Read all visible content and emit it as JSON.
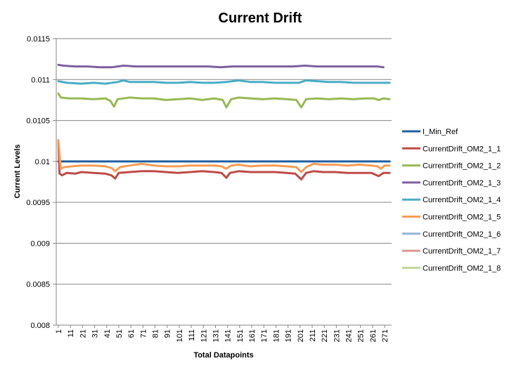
{
  "chart_data": {
    "type": "line",
    "title": "Current Drift",
    "xlabel": "Total Datapoints",
    "ylabel": "Current Levels",
    "xlim": [
      1,
      275
    ],
    "ylim": [
      0.008,
      0.0115
    ],
    "y_ticks": [
      "0.008",
      "0.0085",
      "0.009",
      "0.0095",
      "0.01",
      "0.0105",
      "0.011",
      "0.0115"
    ],
    "x_ticks": [
      "1",
      "11",
      "21",
      "31",
      "41",
      "51",
      "61",
      "71",
      "81",
      "91",
      "101",
      "111",
      "121",
      "131",
      "141",
      "151",
      "161",
      "171",
      "181",
      "191",
      "201",
      "211",
      "221",
      "231",
      "241",
      "251",
      "261",
      "271"
    ],
    "grid": true,
    "legend_position": "right",
    "series": [
      {
        "name": "I_Min_Ref",
        "color": "#1f5f9f",
        "points": [
          [
            1,
            0.01
          ],
          [
            275,
            0.01
          ]
        ]
      },
      {
        "name": "CurrentDrift_OM2_1_1",
        "color": "#be4b48",
        "points": [
          [
            1,
            0.01025
          ],
          [
            2,
            0.00985
          ],
          [
            4,
            0.00983
          ],
          [
            8,
            0.00986
          ],
          [
            15,
            0.00985
          ],
          [
            20,
            0.00987
          ],
          [
            30,
            0.00986
          ],
          [
            40,
            0.00985
          ],
          [
            45,
            0.00983
          ],
          [
            48,
            0.00979
          ],
          [
            51,
            0.00986
          ],
          [
            60,
            0.00987
          ],
          [
            70,
            0.00988
          ],
          [
            80,
            0.00988
          ],
          [
            90,
            0.00987
          ],
          [
            100,
            0.00986
          ],
          [
            110,
            0.00987
          ],
          [
            120,
            0.00988
          ],
          [
            130,
            0.00987
          ],
          [
            136,
            0.00986
          ],
          [
            140,
            0.0098
          ],
          [
            143,
            0.00986
          ],
          [
            150,
            0.00988
          ],
          [
            160,
            0.00987
          ],
          [
            170,
            0.00987
          ],
          [
            180,
            0.00987
          ],
          [
            190,
            0.00986
          ],
          [
            197,
            0.00985
          ],
          [
            202,
            0.00978
          ],
          [
            206,
            0.00986
          ],
          [
            212,
            0.00988
          ],
          [
            220,
            0.00987
          ],
          [
            230,
            0.00987
          ],
          [
            240,
            0.00986
          ],
          [
            250,
            0.00986
          ],
          [
            260,
            0.00986
          ],
          [
            266,
            0.00982
          ],
          [
            270,
            0.00986
          ],
          [
            275,
            0.00986
          ]
        ]
      },
      {
        "name": "CurrentDrift_OM2_1_2",
        "color": "#98b954",
        "points": [
          [
            1,
            0.01083
          ],
          [
            3,
            0.01078
          ],
          [
            10,
            0.01077
          ],
          [
            20,
            0.01077
          ],
          [
            30,
            0.01076
          ],
          [
            40,
            0.01077
          ],
          [
            44,
            0.01074
          ],
          [
            47,
            0.01067
          ],
          [
            50,
            0.01076
          ],
          [
            60,
            0.01078
          ],
          [
            70,
            0.01077
          ],
          [
            80,
            0.01077
          ],
          [
            90,
            0.01075
          ],
          [
            100,
            0.01076
          ],
          [
            110,
            0.01077
          ],
          [
            120,
            0.01075
          ],
          [
            130,
            0.01077
          ],
          [
            137,
            0.01075
          ],
          [
            140,
            0.01066
          ],
          [
            144,
            0.01076
          ],
          [
            150,
            0.01078
          ],
          [
            160,
            0.01077
          ],
          [
            170,
            0.01076
          ],
          [
            180,
            0.01077
          ],
          [
            190,
            0.01076
          ],
          [
            198,
            0.01075
          ],
          [
            202,
            0.01066
          ],
          [
            206,
            0.01076
          ],
          [
            215,
            0.01077
          ],
          [
            225,
            0.01076
          ],
          [
            235,
            0.01077
          ],
          [
            245,
            0.01076
          ],
          [
            255,
            0.01077
          ],
          [
            262,
            0.01077
          ],
          [
            266,
            0.01075
          ],
          [
            270,
            0.01077
          ],
          [
            275,
            0.01076
          ]
        ]
      },
      {
        "name": "CurrentDrift_OM2_1_3",
        "color": "#7d60a0",
        "points": [
          [
            1,
            0.01118
          ],
          [
            5,
            0.01117
          ],
          [
            15,
            0.01116
          ],
          [
            25,
            0.01116
          ],
          [
            35,
            0.01115
          ],
          [
            45,
            0.01115
          ],
          [
            55,
            0.01117
          ],
          [
            65,
            0.01116
          ],
          [
            75,
            0.01116
          ],
          [
            85,
            0.01116
          ],
          [
            95,
            0.01116
          ],
          [
            105,
            0.01116
          ],
          [
            115,
            0.01116
          ],
          [
            125,
            0.01116
          ],
          [
            135,
            0.01115
          ],
          [
            145,
            0.01116
          ],
          [
            155,
            0.01116
          ],
          [
            165,
            0.01116
          ],
          [
            175,
            0.01116
          ],
          [
            185,
            0.01116
          ],
          [
            195,
            0.01116
          ],
          [
            205,
            0.01117
          ],
          [
            215,
            0.01116
          ],
          [
            225,
            0.01116
          ],
          [
            235,
            0.01116
          ],
          [
            245,
            0.01116
          ],
          [
            255,
            0.01116
          ],
          [
            265,
            0.01116
          ],
          [
            270,
            0.01115
          ]
        ]
      },
      {
        "name": "CurrentDrift_OM2_1_4",
        "color": "#4aacc5",
        "points": [
          [
            1,
            0.01098
          ],
          [
            8,
            0.01096
          ],
          [
            20,
            0.01095
          ],
          [
            30,
            0.01096
          ],
          [
            40,
            0.01095
          ],
          [
            50,
            0.01097
          ],
          [
            55,
            0.01099
          ],
          [
            60,
            0.01097
          ],
          [
            70,
            0.01097
          ],
          [
            80,
            0.01097
          ],
          [
            90,
            0.01096
          ],
          [
            100,
            0.01096
          ],
          [
            110,
            0.01097
          ],
          [
            120,
            0.01096
          ],
          [
            130,
            0.01096
          ],
          [
            140,
            0.01097
          ],
          [
            150,
            0.01099
          ],
          [
            160,
            0.01097
          ],
          [
            170,
            0.01097
          ],
          [
            180,
            0.01096
          ],
          [
            190,
            0.01096
          ],
          [
            200,
            0.01096
          ],
          [
            206,
            0.01099
          ],
          [
            215,
            0.01098
          ],
          [
            225,
            0.01097
          ],
          [
            235,
            0.01097
          ],
          [
            245,
            0.01096
          ],
          [
            255,
            0.01096
          ],
          [
            265,
            0.01096
          ],
          [
            275,
            0.01096
          ]
        ]
      },
      {
        "name": "CurrentDrift_OM2_1_5",
        "color": "#f59d56",
        "points": [
          [
            1,
            0.01026
          ],
          [
            3,
            0.00991
          ],
          [
            6,
            0.00993
          ],
          [
            12,
            0.00994
          ],
          [
            20,
            0.00995
          ],
          [
            30,
            0.00995
          ],
          [
            40,
            0.00994
          ],
          [
            45,
            0.00992
          ],
          [
            48,
            0.00988
          ],
          [
            52,
            0.00993
          ],
          [
            60,
            0.00995
          ],
          [
            70,
            0.00997
          ],
          [
            80,
            0.00995
          ],
          [
            90,
            0.00994
          ],
          [
            100,
            0.00994
          ],
          [
            110,
            0.00995
          ],
          [
            120,
            0.00995
          ],
          [
            130,
            0.00995
          ],
          [
            136,
            0.00994
          ],
          [
            140,
            0.00991
          ],
          [
            144,
            0.00995
          ],
          [
            150,
            0.00996
          ],
          [
            160,
            0.00994
          ],
          [
            170,
            0.00995
          ],
          [
            180,
            0.00995
          ],
          [
            190,
            0.00994
          ],
          [
            198,
            0.00993
          ],
          [
            202,
            0.00987
          ],
          [
            206,
            0.00993
          ],
          [
            212,
            0.00997
          ],
          [
            220,
            0.00996
          ],
          [
            230,
            0.00996
          ],
          [
            240,
            0.00995
          ],
          [
            250,
            0.00996
          ],
          [
            260,
            0.00995
          ],
          [
            265,
            0.00994
          ],
          [
            268,
            0.00991
          ],
          [
            271,
            0.00995
          ],
          [
            275,
            0.00995
          ]
        ]
      },
      {
        "name": "CurrentDrift_OM2_1_6",
        "color": "#95b3d7",
        "points": []
      },
      {
        "name": "CurrentDrift_OM2_1_7",
        "color": "#d99694",
        "points": []
      },
      {
        "name": "CurrentDrift_OM2_1_8",
        "color": "#c3d69b",
        "points": []
      }
    ]
  }
}
